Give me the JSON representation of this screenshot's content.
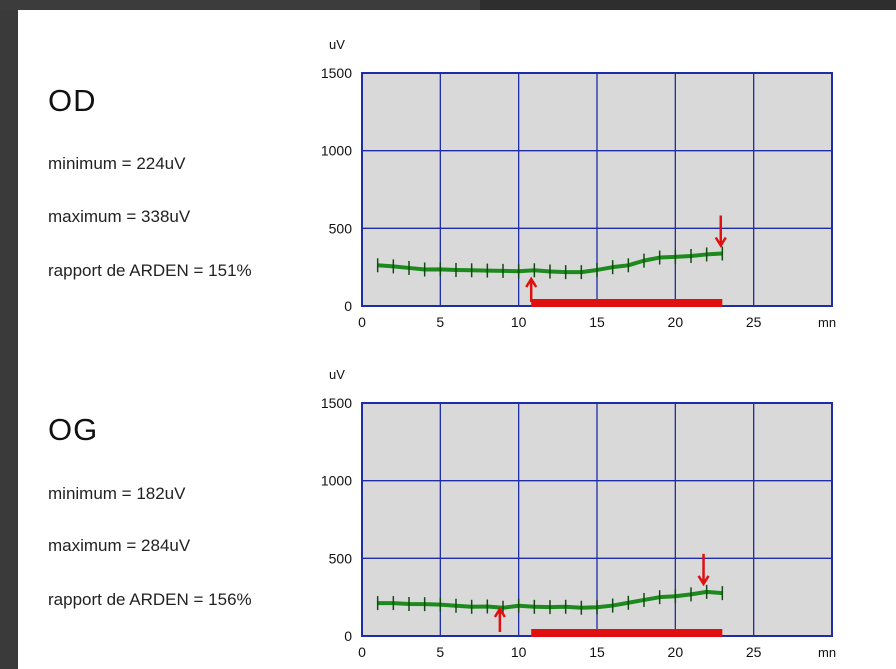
{
  "colors": {
    "plot_bg": "#d9d9d9",
    "grid": "#1f2ca8",
    "curve": "#1c8a1c",
    "marker": "#e01010"
  },
  "panels": [
    {
      "eye": "OD",
      "stats": {
        "minimum": "minimum = 224uV",
        "maximum": "maximum = 338uV",
        "ratio": "rapport de ARDEN = 151%"
      }
    },
    {
      "eye": "OG",
      "stats": {
        "minimum": "minimum = 182uV",
        "maximum": "maximum = 284uV",
        "ratio": "rapport de ARDEN = 156%"
      }
    }
  ],
  "chart_data": [
    {
      "type": "line",
      "title": "",
      "ylabel": "uV",
      "xlabel": "mn",
      "xlim": [
        0,
        30
      ],
      "ylim": [
        0,
        1500
      ],
      "xticks": [
        0,
        5,
        10,
        15,
        20,
        25
      ],
      "yticks": [
        0,
        500,
        1000,
        1500
      ],
      "grid": true,
      "series": [
        {
          "x": [
            1,
            2,
            3,
            4,
            5,
            6,
            7,
            8,
            9,
            10,
            11,
            12,
            13,
            14,
            15,
            16,
            17,
            18,
            19,
            20,
            21,
            22,
            23
          ],
          "y": [
            262,
            255,
            245,
            235,
            236,
            232,
            230,
            228,
            226,
            224,
            230,
            222,
            218,
            218,
            232,
            250,
            262,
            292,
            312,
            316,
            322,
            332,
            338
          ]
        }
      ],
      "markers": [
        {
          "kind": "arrow-up",
          "x": 10.8,
          "y": 0
        },
        {
          "kind": "arrow-down",
          "x": 22.9,
          "y": 338
        }
      ],
      "light_period": [
        10.8,
        23
      ]
    },
    {
      "type": "line",
      "title": "",
      "ylabel": "uV",
      "xlabel": "mn",
      "xlim": [
        0,
        30
      ],
      "ylim": [
        0,
        1500
      ],
      "xticks": [
        0,
        5,
        10,
        15,
        20,
        25
      ],
      "yticks": [
        0,
        500,
        1000,
        1500
      ],
      "grid": true,
      "series": [
        {
          "x": [
            1,
            2,
            3,
            4,
            5,
            6,
            7,
            8,
            9,
            10,
            11,
            12,
            13,
            14,
            15,
            16,
            17,
            18,
            19,
            20,
            21,
            22,
            23
          ],
          "y": [
            212,
            212,
            206,
            205,
            202,
            195,
            188,
            190,
            182,
            195,
            188,
            186,
            188,
            182,
            185,
            196,
            214,
            232,
            250,
            256,
            268,
            284,
            276
          ]
        }
      ],
      "markers": [
        {
          "kind": "arrow-up",
          "x": 8.8,
          "y": 0
        },
        {
          "kind": "arrow-down",
          "x": 21.8,
          "y": 284
        }
      ],
      "light_period": [
        10.8,
        23
      ]
    }
  ]
}
